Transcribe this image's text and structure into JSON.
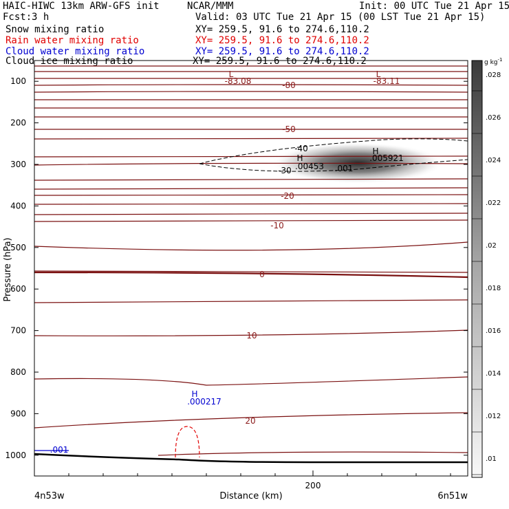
{
  "header": {
    "model": "HAIC-HIWC 13km ARW-GFS init",
    "org": "NCAR/MMM",
    "init": "Init: 00 UTC Tue 21 Apr 15",
    "fcst_label": "Fcst:",
    "fcst_value": "3 h",
    "valid": "Valid: 03 UTC Tue 21 Apr 15 (00 LST Tue 21 Apr 15)"
  },
  "fields": [
    {
      "name": "Snow mixing ratio",
      "xy": "XY= 259.5, 91.6 to 274.6,110.2",
      "color": "#000000"
    },
    {
      "name": "Rain water mixing ratio",
      "xy": "XY= 259.5, 91.6 to 274.6,110.2",
      "color": "#e00000"
    },
    {
      "name": "Cloud water mixing ratio",
      "xy": "XY= 259.5, 91.6 to 274.6,110.2",
      "color": "#0000d0"
    },
    {
      "name": "Cloud ice mixing ratio",
      "xy": "XY= 259.5, 91.6 to 274.6,110.2",
      "color": "#000000"
    }
  ],
  "chart_data": {
    "type": "cross-section contour",
    "ylabel": "Pressure (hPa)",
    "xlabel": "Distance (km)",
    "x_ticks": [
      {
        "value": 200,
        "label": "200"
      }
    ],
    "y_ticks": [
      100,
      200,
      300,
      400,
      500,
      600,
      700,
      800,
      900,
      1000
    ],
    "y_range": [
      1050,
      50
    ],
    "left_end_label": "4n53w",
    "right_end_label": "6n51w",
    "colorbar": {
      "unit": "g kg",
      "unit_exp": "-1",
      "ticks": [
        ".01",
        ".012",
        ".014",
        ".016",
        ".018",
        ".02",
        ".022",
        ".024",
        ".026",
        ".028"
      ]
    },
    "temperature_labels": [
      {
        "text": "-80",
        "color": "#8b1a1a"
      },
      {
        "text": "-50",
        "color": "#8b1a1a"
      },
      {
        "text": "-40",
        "color": "#000000"
      },
      {
        "text": "-30",
        "color": "#000000"
      },
      {
        "text": "-20",
        "color": "#8b1a1a"
      },
      {
        "text": "-10",
        "color": "#8b1a1a"
      },
      {
        "text": "0",
        "color": "#8b1a1a"
      },
      {
        "text": "10",
        "color": "#8b1a1a"
      },
      {
        "text": "20",
        "color": "#8b1a1a"
      }
    ],
    "extrema": [
      {
        "mark": "L",
        "value": "-83.08",
        "color": "#8b1a1a"
      },
      {
        "mark": "L",
        "value": "-83.11",
        "color": "#8b1a1a"
      },
      {
        "mark": "H",
        "value": ".00453",
        "color": "#000000"
      },
      {
        "mark": "H",
        "value": ".005921",
        "color": "#000000"
      },
      {
        "mark": "H",
        "value": ".000217",
        "color": "#0000d0"
      }
    ],
    "contour_labels": [
      {
        "text": ".001",
        "color": "#000000"
      },
      {
        "text": ".001",
        "color": "#0000d0"
      }
    ]
  }
}
